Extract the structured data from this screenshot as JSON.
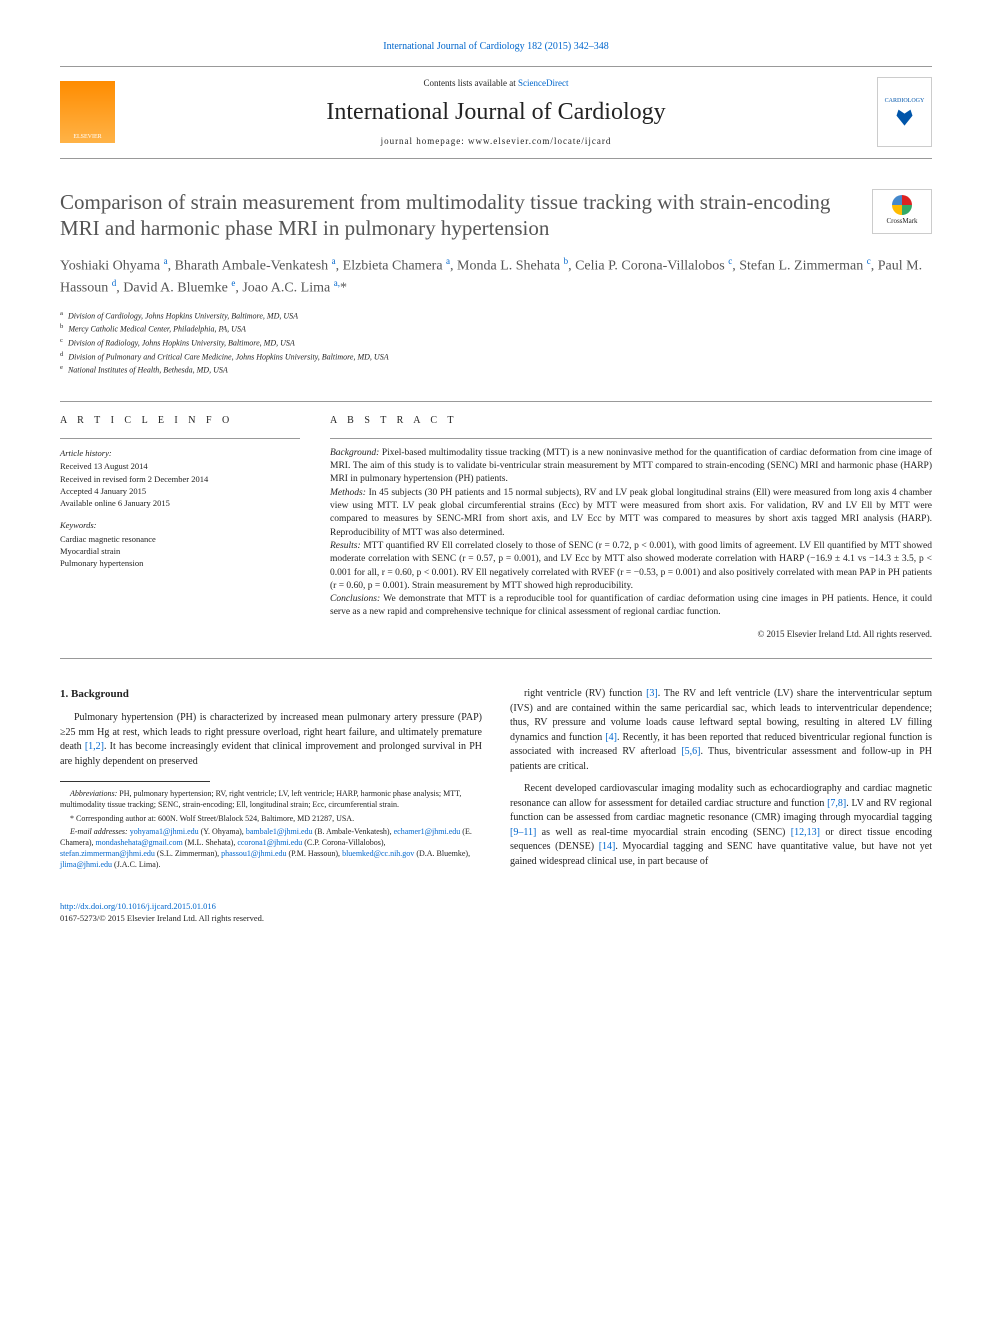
{
  "citation_line": "International Journal of Cardiology 182 (2015) 342–348",
  "contents_prefix": "Contents lists available at ",
  "contents_link": "ScienceDirect",
  "journal_name": "International Journal of Cardiology",
  "homepage_label": "journal homepage: www.elsevier.com/locate/ijcard",
  "publisher_logo_text": "ELSEVIER",
  "cover_logo_text": "CARDIOLOGY",
  "crossmark_label": "CrossMark",
  "title": "Comparison of strain measurement from multimodality tissue tracking with strain-encoding MRI and harmonic phase MRI in pulmonary hypertension",
  "authors_html": "Yoshiaki Ohyama <sup>a</sup>, Bharath Ambale-Venkatesh <sup>a</sup>, Elzbieta Chamera <sup>a</sup>, Monda L. Shehata <sup>b</sup>, Celia P. Corona-Villalobos <sup>c</sup>, Stefan L. Zimmerman <sup>c</sup>, Paul M. Hassoun <sup>d</sup>, David A. Bluemke <sup>e</sup>, Joao A.C. Lima <sup>a,</sup>*",
  "affiliations": [
    {
      "key": "a",
      "text": "Division of Cardiology, Johns Hopkins University, Baltimore, MD, USA"
    },
    {
      "key": "b",
      "text": "Mercy Catholic Medical Center, Philadelphia, PA, USA"
    },
    {
      "key": "c",
      "text": "Division of Radiology, Johns Hopkins University, Baltimore, MD, USA"
    },
    {
      "key": "d",
      "text": "Division of Pulmonary and Critical Care Medicine, Johns Hopkins University, Baltimore, MD, USA"
    },
    {
      "key": "e",
      "text": "National Institutes of Health, Bethesda, MD, USA"
    }
  ],
  "info_heading": "A R T I C L E   I N F O",
  "abstract_heading": "A B S T R A C T",
  "history_label": "Article history:",
  "history": [
    "Received 13 August 2014",
    "Received in revised form 2 December 2014",
    "Accepted 4 January 2015",
    "Available online 6 January 2015"
  ],
  "keywords_label": "Keywords:",
  "keywords": [
    "Cardiac magnetic resonance",
    "Myocardial strain",
    "Pulmonary hypertension"
  ],
  "abstract": {
    "background_label": "Background:",
    "background": " Pixel-based multimodality tissue tracking (MTT) is a new noninvasive method for the quantification of cardiac deformation from cine image of MRI. The aim of this study is to validate bi-ventricular strain measurement by MTT compared to strain-encoding (SENC) MRI and harmonic phase (HARP) MRI in pulmonary hypertension (PH) patients.",
    "methods_label": "Methods:",
    "methods": " In 45 subjects (30 PH patients and 15 normal subjects), RV and LV peak global longitudinal strains (Ell) were measured from long axis 4 chamber view using MTT. LV peak global circumferential strains (Ecc) by MTT were measured from short axis. For validation, RV and LV Ell by MTT were compared to measures by SENC-MRI from short axis, and LV Ecc by MTT was compared to measures by short axis tagged MRI analysis (HARP). Reproducibility of MTT was also determined.",
    "results_label": "Results:",
    "results": " MTT quantified RV Ell correlated closely to those of SENC (r = 0.72, p < 0.001), with good limits of agreement. LV Ell quantified by MTT showed moderate correlation with SENC (r = 0.57, p = 0.001), and LV Ecc by MTT also showed moderate correlation with HARP (−16.9 ± 4.1 vs −14.3 ± 3.5, p < 0.001 for all, r = 0.60, p < 0.001). RV Ell negatively correlated with RVEF (r = −0.53, p = 0.001) and also positively correlated with mean PAP in PH patients (r = 0.60, p = 0.001). Strain measurement by MTT showed high reproducibility.",
    "conclusions_label": "Conclusions:",
    "conclusions": " We demonstrate that MTT is a reproducible tool for quantification of cardiac deformation using cine images in PH patients. Hence, it could serve as a new rapid and comprehensive technique for clinical assessment of regional cardiac function."
  },
  "copyright": "© 2015 Elsevier Ireland Ltd. All rights reserved.",
  "body": {
    "section_heading": "1. Background",
    "p1a": "Pulmonary hypertension (PH) is characterized by increased mean pulmonary artery pressure (PAP) ≥25 mm Hg at rest, which leads to right pressure overload, right heart failure, and ultimately premature death ",
    "p1_ref1": "[1,2]",
    "p1b": ". It has become increasingly evident that clinical improvement and prolonged survival in PH are highly dependent on preserved ",
    "p2a": "right ventricle (RV) function ",
    "p2_ref1": "[3]",
    "p2b": ". The RV and left ventricle (LV) share the interventricular septum (IVS) and are contained within the same pericardial sac, which leads to interventricular dependence; thus, RV pressure and volume loads cause leftward septal bowing, resulting in altered LV filling dynamics and function ",
    "p2_ref2": "[4]",
    "p2c": ". Recently, it has been reported that reduced biventricular regional function is associated with increased RV afterload ",
    "p2_ref3": "[5,6]",
    "p2d": ". Thus, biventricular assessment and follow-up in PH patients are critical.",
    "p3a": "Recent developed cardiovascular imaging modality such as echocardiography and cardiac magnetic resonance can allow for assessment for detailed cardiac structure and function ",
    "p3_ref1": "[7,8]",
    "p3b": ". LV and RV regional function can be assessed from cardiac magnetic resonance (CMR) imaging through myocardial tagging ",
    "p3_ref2": "[9–11]",
    "p3c": " as well as real-time myocardial strain encoding (SENC) ",
    "p3_ref3": "[12,13]",
    "p3d": " or direct tissue encoding sequences (DENSE) ",
    "p3_ref4": "[14]",
    "p3e": ". Myocardial tagging and SENC have quantitative value, but have not yet gained widespread clinical use, in part because of"
  },
  "footnotes": {
    "abbrev_label": "Abbreviations:",
    "abbrev": " PH, pulmonary hypertension; RV, right ventricle; LV, left ventricle; HARP, harmonic phase analysis; MTT, multimodality tissue tracking; SENC, strain-encoding; Ell, longitudinal strain; Ecc, circumferential strain.",
    "corr_label": "* Corresponding author at: ",
    "corr": "600N. Wolf Street/Blalock 524, Baltimore, MD 21287, USA.",
    "email_label": "E-mail addresses: ",
    "emails": [
      {
        "addr": "yohyama1@jhmi.edu",
        "who": " (Y. Ohyama), "
      },
      {
        "addr": "bambale1@jhmi.edu",
        "who": " (B. Ambale-Venkatesh), "
      },
      {
        "addr": "echamer1@jhmi.edu",
        "who": " (E. Chamera), "
      },
      {
        "addr": "mondashehata@gmail.com",
        "who": " (M.L. Shehata), "
      },
      {
        "addr": "ccorona1@jhmi.edu",
        "who": " (C.P. Corona-Villalobos), "
      },
      {
        "addr": "stefan.zimmerman@jhmi.edu",
        "who": " (S.L. Zimmerman), "
      },
      {
        "addr": "phassou1@jhmi.edu",
        "who": " (P.M. Hassoun), "
      },
      {
        "addr": "bluemked@cc.nih.gov",
        "who": " (D.A. Bluemke), "
      },
      {
        "addr": "jlima@jhmi.edu",
        "who": " (J.A.C. Lima)."
      }
    ]
  },
  "footer": {
    "doi": "http://dx.doi.org/10.1016/j.ijcard.2015.01.016",
    "issn_line": "0167-5273/© 2015 Elsevier Ireland Ltd. All rights reserved."
  },
  "colors": {
    "link": "#0066cc",
    "text": "#222222",
    "muted": "#555555"
  }
}
